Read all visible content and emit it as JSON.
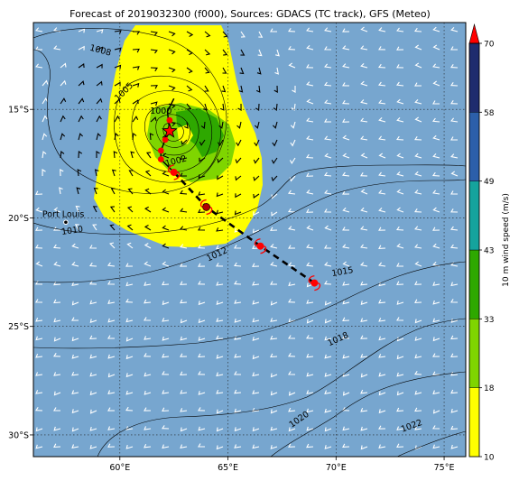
{
  "title": "Forecast of 2019032300 (f000), Sources: GDACS (TC track), GFS (Meteo)",
  "colors": {
    "ocean": "#77a6cf",
    "yellow": "#ffff00",
    "light_green": "#7fd500",
    "green": "#2ea800",
    "teal": "#15a39d",
    "blue": "#2c5faa",
    "navy": "#1f2c6e",
    "storm": "#ff0000",
    "track": "#000000"
  },
  "map": {
    "lon_range": [
      56,
      76
    ],
    "lat_range": [
      -31,
      -11
    ],
    "lon_ticks": [
      {
        "value": 60,
        "label": "60°E"
      },
      {
        "value": 65,
        "label": "65°E"
      },
      {
        "value": 70,
        "label": "70°E"
      },
      {
        "value": 75,
        "label": "75°E"
      }
    ],
    "lat_ticks": [
      {
        "value": -15,
        "label": "15°S"
      },
      {
        "value": -20,
        "label": "20°S"
      },
      {
        "value": -25,
        "label": "25°S"
      },
      {
        "value": -30,
        "label": "30°S"
      }
    ],
    "place": {
      "name": "Port Louis",
      "lon": 57.5,
      "lat": -20.2
    },
    "isobar_labels": [
      {
        "text": "1008",
        "lon": 59.1,
        "lat": -12.3,
        "rot": 15
      },
      {
        "text": "1005",
        "lon": 60.2,
        "lat": -14.2,
        "rot": -45
      },
      {
        "text": "1000",
        "lon": 61.9,
        "lat": -15.1,
        "rot": 0
      },
      {
        "text": "1002",
        "lon": 62.6,
        "lat": -17.4,
        "rot": -15
      },
      {
        "text": "1010",
        "lon": 57.8,
        "lat": -20.6,
        "rot": -8
      },
      {
        "text": "1012",
        "lon": 64.5,
        "lat": -21.7,
        "rot": -25
      },
      {
        "text": "1015",
        "lon": 70.3,
        "lat": -22.5,
        "rot": -10
      },
      {
        "text": "1018",
        "lon": 70.1,
        "lat": -25.6,
        "rot": -25
      },
      {
        "text": "1020",
        "lon": 68.3,
        "lat": -29.3,
        "rot": -35
      },
      {
        "text": "1022",
        "lon": 73.5,
        "lat": -29.6,
        "rot": -20
      }
    ]
  },
  "track": {
    "current": {
      "lon": 62.3,
      "lat": -16.0
    },
    "observed": [
      {
        "lon": 62.5,
        "lat": -14.5
      },
      {
        "lon": 62.2,
        "lat": -15.1
      },
      {
        "lon": 62.3,
        "lat": -16.0
      },
      {
        "lon": 62.1,
        "lat": -16.4
      },
      {
        "lon": 61.9,
        "lat": -16.9
      },
      {
        "lon": 61.9,
        "lat": -17.3
      },
      {
        "lon": 62.5,
        "lat": -17.9
      }
    ],
    "forecast": [
      {
        "lon": 62.5,
        "lat": -17.9
      },
      {
        "lon": 64.0,
        "lat": -19.5
      },
      {
        "lon": 66.5,
        "lat": -21.3
      },
      {
        "lon": 69.0,
        "lat": -23.0
      }
    ],
    "markers": [
      {
        "lon": 62.3,
        "lat": -15.5
      },
      {
        "lon": 62.1,
        "lat": -16.4
      },
      {
        "lon": 61.9,
        "lat": -16.9
      },
      {
        "lon": 61.9,
        "lat": -17.3
      }
    ],
    "storm_symbols": [
      {
        "lon": 62.5,
        "lat": -17.9,
        "dark": false
      },
      {
        "lon": 64.0,
        "lat": -19.5,
        "dark": true
      },
      {
        "lon": 66.5,
        "lat": -21.3,
        "dark": false
      },
      {
        "lon": 69.0,
        "lat": -23.0,
        "dark": false
      }
    ]
  },
  "colorbar": {
    "label": "10 m wind speed (m/s)",
    "ticks": [
      "10",
      "18",
      "33",
      "43",
      "49",
      "58",
      "70"
    ]
  }
}
